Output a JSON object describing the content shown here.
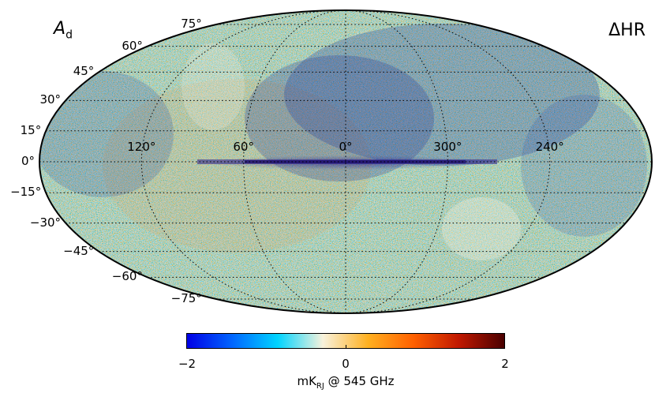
{
  "map": {
    "name_main": "A",
    "name_sub": "d",
    "panel_label": "ΔHR",
    "projection": "mollweide",
    "grid": true,
    "lat_labels": [
      "75°",
      "60°",
      "45°",
      "30°",
      "15°",
      "0°",
      "−15°",
      "−30°",
      "−45°",
      "−60°",
      "−75°"
    ],
    "lat_values": [
      75,
      60,
      45,
      30,
      15,
      0,
      -15,
      -30,
      -45,
      -60,
      -75
    ],
    "lon_labels": [
      "120°",
      "60°",
      "0°",
      "300°",
      "240°"
    ],
    "lon_values": [
      120,
      60,
      0,
      300,
      240
    ]
  },
  "colorbar": {
    "min_label": "−2",
    "mid_label": "0",
    "max_label": "2",
    "unit_main": "mK",
    "unit_sub": "RJ",
    "unit_rest": " @ 545 GHz",
    "range": [
      -2,
      2
    ],
    "colors": [
      "#0000e6",
      "#0066ff",
      "#00d4ff",
      "#f8f2dc",
      "#ffb020",
      "#ff6000",
      "#c01800",
      "#4a0000"
    ]
  }
}
